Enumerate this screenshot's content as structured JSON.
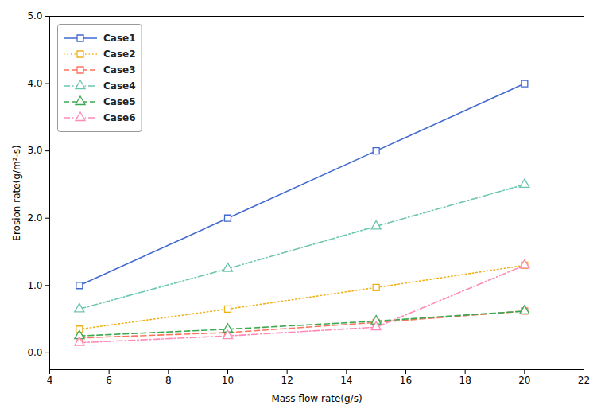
{
  "chart_data": {
    "type": "line",
    "x": [
      5,
      10,
      15,
      20
    ],
    "series": [
      {
        "name": "Case1",
        "values": [
          1.0,
          2.0,
          3.0,
          4.0
        ],
        "line_style": "solid",
        "marker": "square"
      },
      {
        "name": "Case2",
        "values": [
          0.35,
          0.65,
          0.97,
          1.3
        ],
        "line_style": "dotted",
        "marker": "square"
      },
      {
        "name": "Case3",
        "values": [
          0.22,
          0.3,
          0.45,
          0.62
        ],
        "line_style": "dashed",
        "marker": "square"
      },
      {
        "name": "Case4",
        "values": [
          0.65,
          1.25,
          1.88,
          2.5
        ],
        "line_style": "dashdot",
        "marker": "triangle"
      },
      {
        "name": "Case5",
        "values": [
          0.25,
          0.35,
          0.47,
          0.62
        ],
        "line_style": "dashed",
        "marker": "triangle"
      },
      {
        "name": "Case6",
        "values": [
          0.15,
          0.25,
          0.38,
          1.3
        ],
        "line_style": "dashdot",
        "marker": "triangle"
      }
    ],
    "xlabel": "Mass flow rate(g/s)",
    "ylabel": "Erosion rate(g/m²-s)",
    "xlim": [
      4,
      22
    ],
    "ylim": [
      -0.25,
      5
    ],
    "xticks": [
      4,
      6,
      8,
      10,
      12,
      14,
      16,
      18,
      20,
      22
    ],
    "yticks": [
      0,
      1,
      2,
      3,
      4,
      5
    ],
    "legend": "upper left"
  }
}
